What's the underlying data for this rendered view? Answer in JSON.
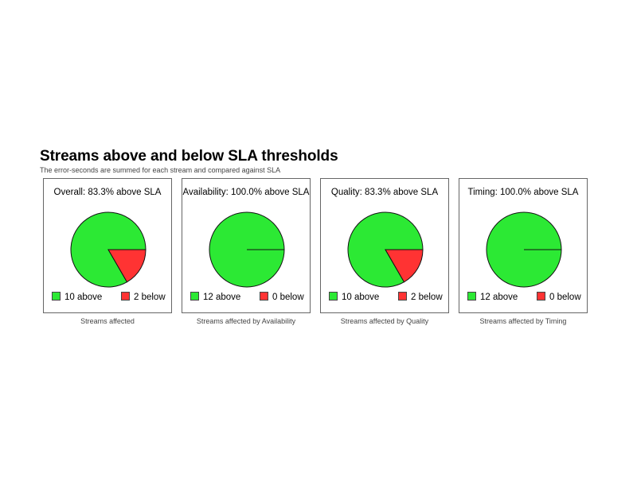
{
  "header": {
    "title": "Streams above and below SLA thresholds",
    "subtitle": "The error-seconds are summed for each stream and compared against SLA"
  },
  "colors": {
    "above": "#2ce934",
    "below": "#ff3333"
  },
  "chart_data": [
    {
      "type": "pie",
      "title": "Overall: 83.3% above SLA",
      "labels": [
        "10 above",
        "2 below"
      ],
      "values": [
        10,
        2
      ],
      "caption": "Streams affected",
      "legend": "bottom"
    },
    {
      "type": "pie",
      "title": "Availability: 100.0% above SLA",
      "labels": [
        "12 above",
        "0 below"
      ],
      "values": [
        12,
        0
      ],
      "caption": "Streams affected by Availability",
      "legend": "bottom"
    },
    {
      "type": "pie",
      "title": "Quality: 83.3% above SLA",
      "labels": [
        "10 above",
        "2 below"
      ],
      "values": [
        10,
        2
      ],
      "caption": "Streams affected by Quality",
      "legend": "bottom"
    },
    {
      "type": "pie",
      "title": "Timing: 100.0% above SLA",
      "labels": [
        "12 above",
        "0 below"
      ],
      "values": [
        12,
        0
      ],
      "caption": "Streams affected by Timing",
      "legend": "bottom"
    }
  ]
}
